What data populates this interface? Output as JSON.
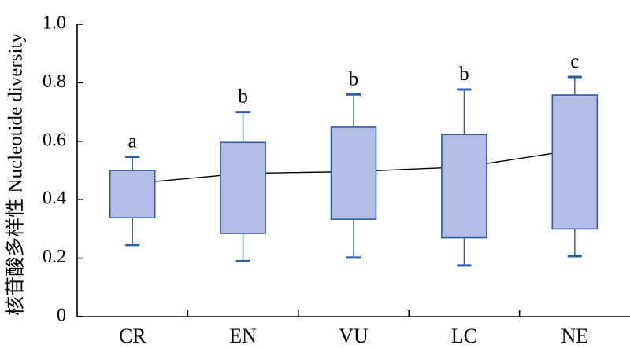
{
  "chart_data": {
    "type": "box",
    "ylabel": "核苷酸多样性 Nucleotide diversity",
    "ylim": [
      0,
      1.0
    ],
    "yticks": [
      0,
      0.2,
      0.4,
      0.6,
      0.8,
      1.0
    ],
    "ytick_labels": [
      "0",
      "0.2",
      "0.4",
      "0.6",
      "0.8",
      "1.0"
    ],
    "categories": [
      "CR",
      "EN",
      "VU",
      "LC",
      "NE"
    ],
    "boxes": [
      {
        "category": "CR",
        "whisker_low": 0.245,
        "q1": 0.338,
        "q3": 0.5,
        "whisker_high": 0.547,
        "mean": 0.455,
        "group": "a"
      },
      {
        "category": "EN",
        "whisker_low": 0.19,
        "q1": 0.285,
        "q3": 0.596,
        "whisker_high": 0.7,
        "mean": 0.49,
        "group": "b"
      },
      {
        "category": "VU",
        "whisker_low": 0.202,
        "q1": 0.333,
        "q3": 0.648,
        "whisker_high": 0.76,
        "mean": 0.496,
        "group": "b"
      },
      {
        "category": "LC",
        "whisker_low": 0.175,
        "q1": 0.27,
        "q3": 0.623,
        "whisker_high": 0.777,
        "mean": 0.512,
        "group": "b"
      },
      {
        "category": "NE",
        "whisker_low": 0.207,
        "q1": 0.3,
        "q3": 0.758,
        "whisker_high": 0.82,
        "mean": 0.57,
        "group": "c"
      }
    ],
    "colors": {
      "box_fill": "#b4bde6",
      "box_edge": "#2e5aa8",
      "whisker": "#2e5aa8",
      "mean_line": "#000000",
      "axis": "#000000"
    },
    "grid": false
  }
}
